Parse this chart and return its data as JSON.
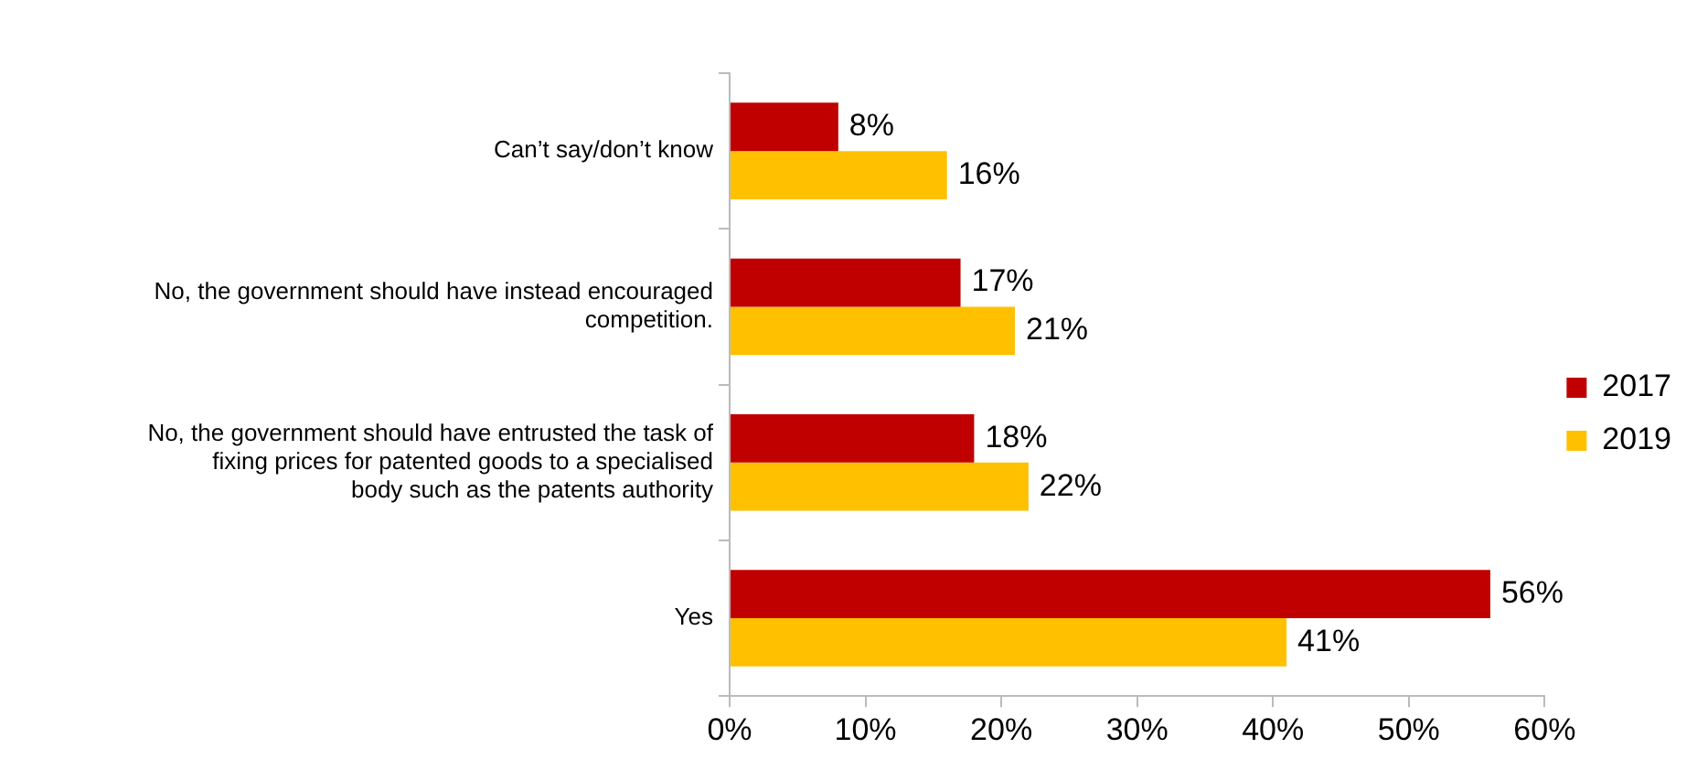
{
  "chart_data": {
    "type": "bar",
    "orientation": "horizontal",
    "categories": [
      "Can’t say/don’t know",
      "No, the government should have instead encouraged competition.",
      "No, the government should have entrusted the task of fixing prices for patented goods to a specialised body such as the patents authority",
      "Yes"
    ],
    "series": [
      {
        "name": "2017",
        "color": "#c00000",
        "values": [
          8,
          17,
          18,
          56
        ],
        "value_labels": [
          "8%",
          "17%",
          "18%",
          "56%"
        ]
      },
      {
        "name": "2019",
        "color": "#ffc000",
        "values": [
          16,
          21,
          22,
          41
        ],
        "value_labels": [
          "16%",
          "21%",
          "22%",
          "41%"
        ]
      }
    ],
    "xlim": [
      0,
      60
    ],
    "xticks": [
      {
        "value": 0,
        "label": "0%"
      },
      {
        "value": 10,
        "label": "10%"
      },
      {
        "value": 20,
        "label": "20%"
      },
      {
        "value": 30,
        "label": "30%"
      },
      {
        "value": 40,
        "label": "40%"
      },
      {
        "value": 50,
        "label": "50%"
      },
      {
        "value": 60,
        "label": "60%"
      }
    ],
    "grid": false,
    "legend": "right"
  }
}
